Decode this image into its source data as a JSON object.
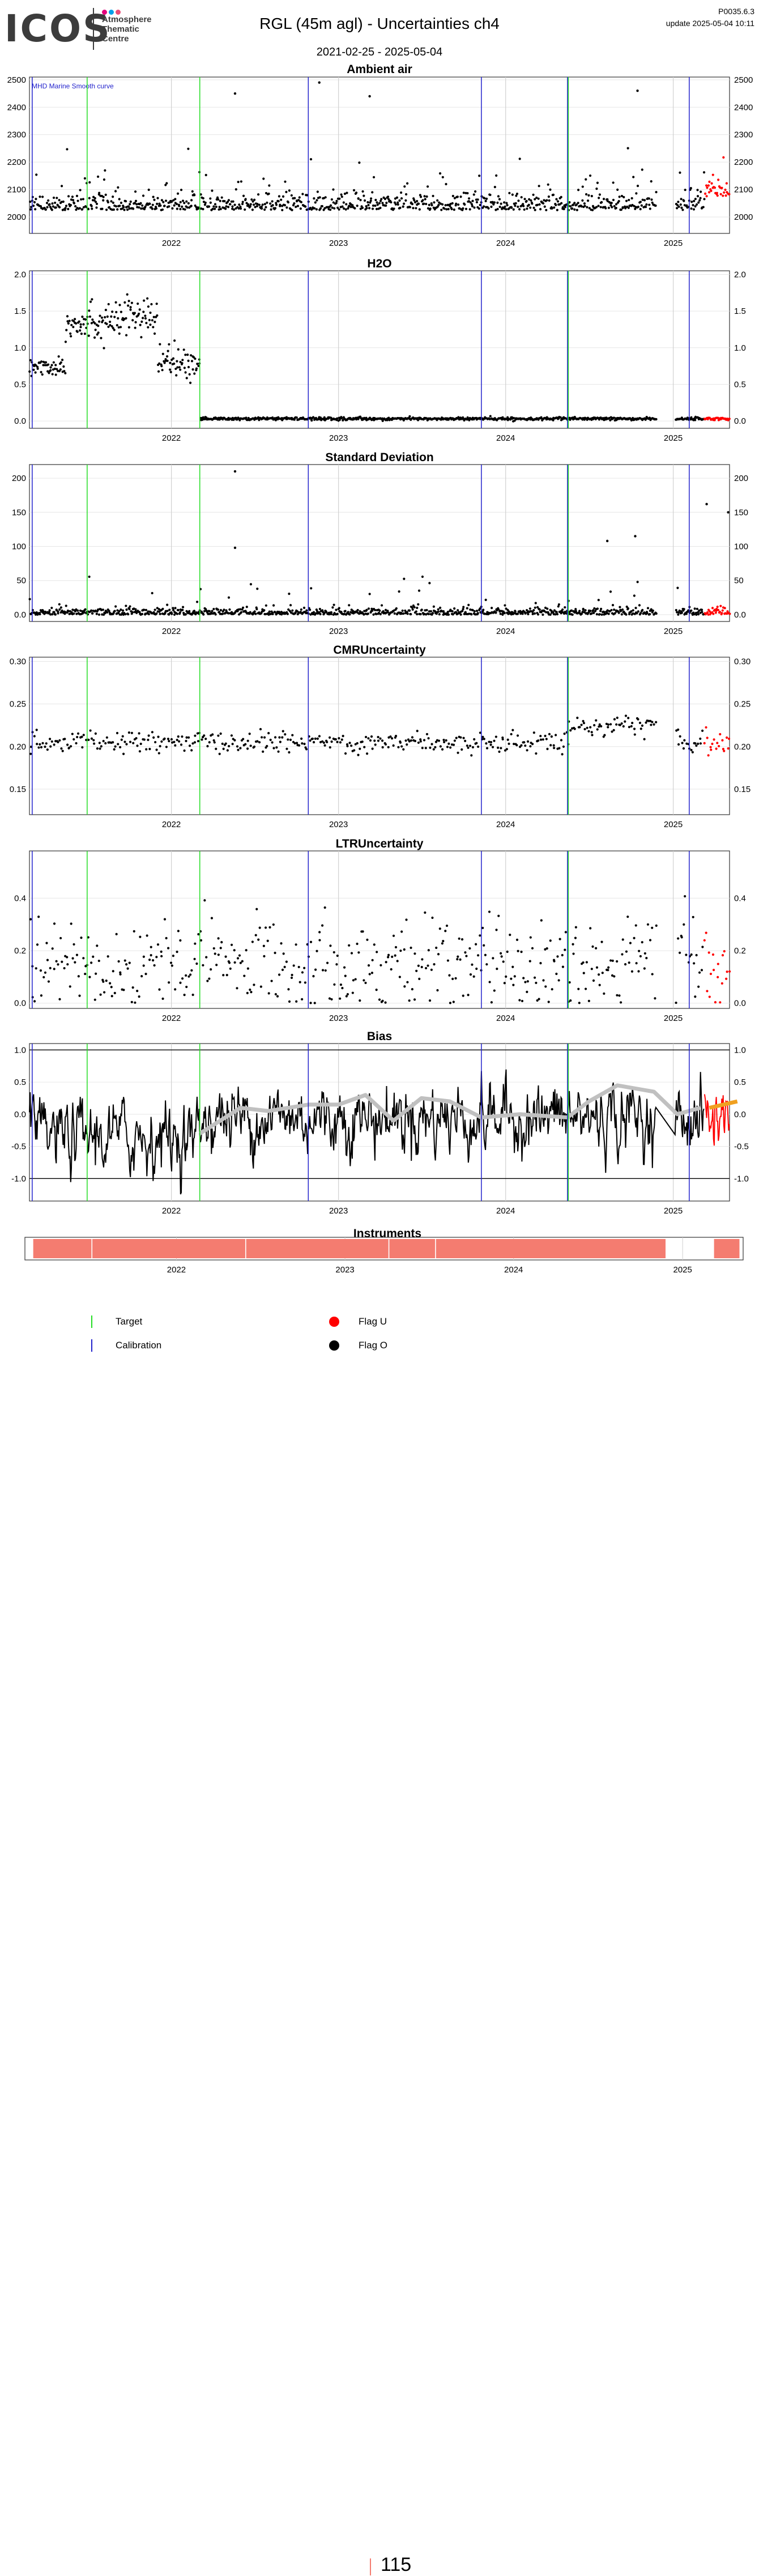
{
  "header": {
    "logo_text": "ICOS",
    "logo_subtitle_lines": [
      "Atmosphere",
      "Thematic",
      "Centre"
    ],
    "logo_dot_colors": [
      "#e4007c",
      "#00a0e9",
      "#e94e77"
    ],
    "title": "RGL  (45m agl) - Uncertainties ch4",
    "date_range": "2021-02-25 - 2025-05-04",
    "version": "P0035.6.3",
    "update": "update  2025-05-04 10:11"
  },
  "colors": {
    "target": "#22dd22",
    "calibration": "#2222cc",
    "flag_u": "#ff0000",
    "flag_o": "#000000",
    "smooth_curve": "#c0c0c0",
    "smooth_curve_recent": "#f0a020",
    "instrument": "#f47c70"
  },
  "events": {
    "target_dates": [
      "2021-07-01",
      "2022-03-04",
      "2024-05-17"
    ],
    "calibration_dates": [
      "2021-03-03",
      "2022-10-27",
      "2023-11-09",
      "2024-05-15",
      "2025-02-05"
    ]
  },
  "chart_data": [
    {
      "type": "scatter",
      "title": "Ambient air",
      "annotation": "MHD Marine Smooth curve",
      "x_ticks": [
        "2022",
        "2023",
        "2024",
        "2025"
      ],
      "y_ticks": [
        2000,
        2100,
        2200,
        2300,
        2400,
        2500
      ],
      "ylim": [
        1940,
        2510
      ],
      "gap": [
        "2024-11-25",
        "2025-01-05"
      ],
      "series": [
        {
          "flag": "O",
          "range": [
            "2021-02-25",
            "2025-03-10"
          ],
          "baseline": 2025,
          "spread": 60
        },
        {
          "flag": "U",
          "range": [
            "2025-03-10",
            "2025-05-04"
          ],
          "baseline": 2075,
          "spread": 50
        }
      ],
      "outliers": [
        {
          "date": "2022-05-20",
          "value": 2450
        },
        {
          "date": "2022-11-20",
          "value": 2490
        },
        {
          "date": "2023-03-10",
          "value": 2440
        },
        {
          "date": "2024-10-15",
          "value": 2460
        }
      ]
    },
    {
      "type": "scatter",
      "title": "H2O",
      "x_ticks": [
        "2022",
        "2023",
        "2024",
        "2025"
      ],
      "y_ticks": [
        0.0,
        0.5,
        1.0,
        1.5,
        2.0
      ],
      "ylim": [
        -0.1,
        2.05
      ],
      "gap": [
        "2024-11-25",
        "2025-01-05"
      ],
      "segments": [
        {
          "range": [
            "2021-02-25",
            "2021-05-15"
          ],
          "level": 0.75,
          "spread": 0.15
        },
        {
          "range": [
            "2021-05-15",
            "2021-08-01"
          ],
          "level": 1.35,
          "spread": 0.25
        },
        {
          "range": [
            "2021-08-01",
            "2021-12-01"
          ],
          "level": 1.4,
          "spread": 0.3
        },
        {
          "range": [
            "2021-12-01",
            "2022-03-05"
          ],
          "level": 0.8,
          "spread": 0.2
        },
        {
          "range": [
            "2022-03-05",
            "2025-05-04"
          ],
          "level": 0.03,
          "spread": 0.02
        }
      ]
    },
    {
      "type": "scatter",
      "title": "Standard Deviation",
      "x_ticks": [
        "2022",
        "2023",
        "2024",
        "2025"
      ],
      "y_ticks": [
        0,
        50,
        100,
        150,
        200
      ],
      "ylim": [
        -10,
        220
      ],
      "gap": [
        "2024-11-25",
        "2025-01-05"
      ],
      "baseline": 4,
      "spread": 8,
      "outliers": [
        {
          "date": "2022-05-20",
          "value": 210
        },
        {
          "date": "2022-05-20",
          "value": 98
        },
        {
          "date": "2025-03-15",
          "value": 162
        },
        {
          "date": "2025-05-01",
          "value": 150
        },
        {
          "date": "2024-10-10",
          "value": 115
        },
        {
          "date": "2024-08-10",
          "value": 108
        }
      ]
    },
    {
      "type": "scatter",
      "title": "CMRUncertainty",
      "x_ticks": [
        "2022",
        "2023",
        "2024",
        "2025"
      ],
      "y_ticks": [
        0.15,
        0.2,
        0.25,
        0.3
      ],
      "ylim": [
        0.12,
        0.305
      ],
      "gap": [
        "2024-11-25",
        "2025-01-05"
      ],
      "segments": [
        {
          "range": [
            "2021-02-25",
            "2024-05-17"
          ],
          "level": 0.205,
          "spread": 0.012
        },
        {
          "range": [
            "2024-05-17",
            "2024-11-25"
          ],
          "level": 0.225,
          "spread": 0.012
        },
        {
          "range": [
            "2025-01-05",
            "2025-05-04"
          ],
          "level": 0.205,
          "spread": 0.012
        }
      ]
    },
    {
      "type": "scatter",
      "title": "LTRUncertainty",
      "x_ticks": [
        "2022",
        "2023",
        "2024",
        "2025"
      ],
      "y_ticks": [
        0.0,
        0.2,
        0.4
      ],
      "ylim": [
        -0.02,
        0.58
      ],
      "gap": [
        "2024-11-25",
        "2025-01-05"
      ],
      "baseline": 0.15,
      "spread": 0.1
    },
    {
      "type": "line",
      "title": "Bias",
      "x_ticks": [
        "2022",
        "2023",
        "2024",
        "2025"
      ],
      "y_ticks": [
        -1.0,
        -0.5,
        0.0,
        0.5,
        1.0
      ],
      "ylim": [
        -1.35,
        1.1
      ],
      "gap": [
        "2024-11-25",
        "2025-01-05"
      ],
      "reference_lines": [
        -1.0,
        1.0
      ],
      "smooth_curve": [
        {
          "date": "2022-03-04",
          "value": -0.3
        },
        {
          "date": "2022-06-01",
          "value": 0.1
        },
        {
          "date": "2022-08-01",
          "value": 0.05
        },
        {
          "date": "2022-10-27",
          "value": 0.15
        },
        {
          "date": "2023-01-01",
          "value": 0.15
        },
        {
          "date": "2023-03-01",
          "value": 0.3
        },
        {
          "date": "2023-05-01",
          "value": -0.1
        },
        {
          "date": "2023-07-01",
          "value": 0.25
        },
        {
          "date": "2023-09-01",
          "value": 0.2
        },
        {
          "date": "2023-11-09",
          "value": -0.05
        },
        {
          "date": "2024-02-01",
          "value": 0.0
        },
        {
          "date": "2024-05-15",
          "value": -0.05
        },
        {
          "date": "2024-07-01",
          "value": 0.2
        },
        {
          "date": "2024-09-01",
          "value": 0.45
        },
        {
          "date": "2024-11-20",
          "value": 0.35
        },
        {
          "date": "2025-01-10",
          "value": 0.0
        },
        {
          "date": "2025-03-01",
          "value": 0.1
        },
        {
          "date": "2025-05-01",
          "value": 0.2
        }
      ]
    }
  ],
  "instruments": {
    "title": "Instruments",
    "x_ticks": [
      "2022",
      "2023",
      "2024",
      "2025"
    ],
    "bars": [
      {
        "start": "2021-02-25",
        "end": "2021-07-01"
      },
      {
        "start": "2021-07-03",
        "end": "2022-05-30"
      },
      {
        "start": "2022-06-01",
        "end": "2023-04-05"
      },
      {
        "start": "2023-04-07",
        "end": "2023-07-15"
      },
      {
        "start": "2023-07-17",
        "end": "2024-11-25"
      },
      {
        "start": "2025-03-10",
        "end": "2025-05-04"
      }
    ],
    "count": "115"
  },
  "legend": {
    "target": "Target",
    "calibration": "Calibration",
    "flag_u": "Flag U",
    "flag_o": "Flag O"
  }
}
